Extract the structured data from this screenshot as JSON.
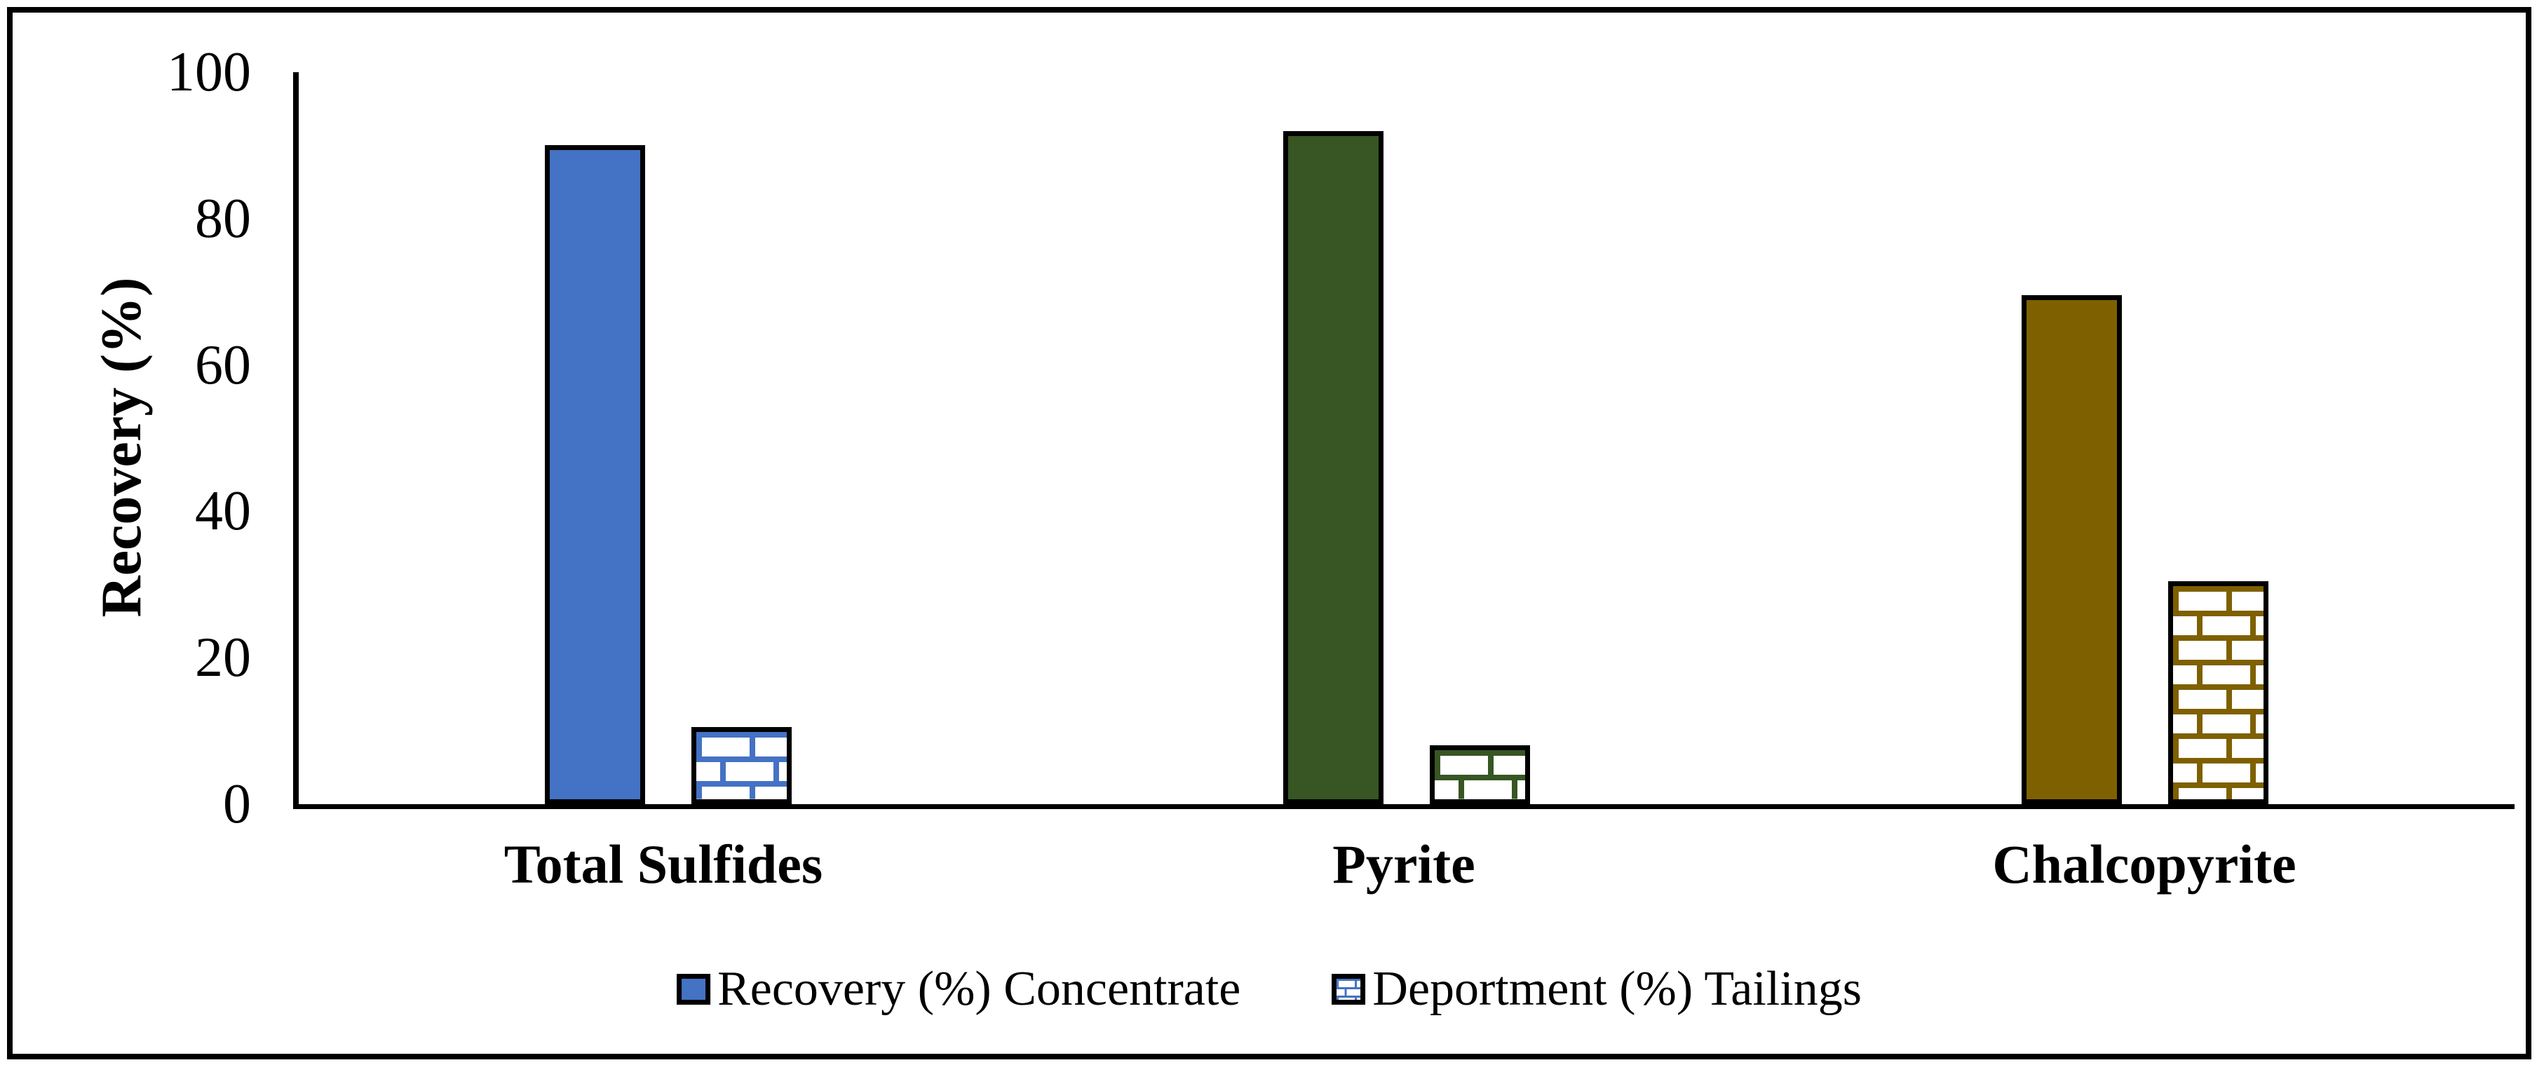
{
  "chart_data": {
    "type": "bar",
    "title": "",
    "categories": [
      "Total Sulfides",
      "Pyrite",
      "Chalcopyrite"
    ],
    "series": [
      {
        "name": "Recovery (%) Concentrate",
        "pattern": "solid",
        "values": [
          90,
          92,
          69.5
        ]
      },
      {
        "name": "Deportment (%) Tailings",
        "pattern": "brick",
        "values": [
          10.5,
          8,
          30.5
        ]
      }
    ],
    "point_colors": [
      "#4472C4",
      "#375623",
      "#7F6000"
    ],
    "bar_border_color": "#000000",
    "axis_color": "#000000",
    "xlabel": "",
    "ylabel": "Recovery (%)",
    "ylim": [
      0,
      100
    ],
    "yticks": [
      0,
      20,
      40,
      60,
      80,
      100
    ],
    "grid": false,
    "legend_position": "bottom",
    "legend": [
      "Recovery (%) Concentrate",
      "Deportment (%) Tailings"
    ]
  }
}
